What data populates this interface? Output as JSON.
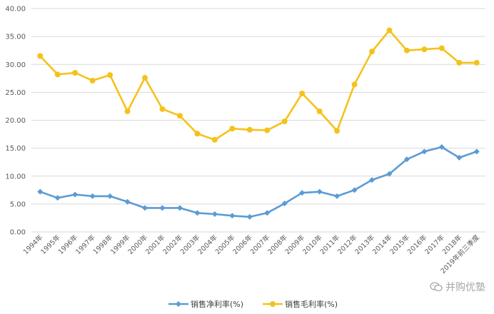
{
  "chart_data": {
    "type": "line",
    "title": "",
    "xlabel": "",
    "ylabel": "",
    "ylim": [
      0,
      40
    ],
    "yticks": [
      "0.00",
      "5.00",
      "10.00",
      "15.00",
      "20.00",
      "25.00",
      "30.00",
      "35.00",
      "40.00"
    ],
    "grid": true,
    "legend_position": "bottom",
    "categories": [
      "1994年",
      "1995年",
      "1996年",
      "1997年",
      "1998年",
      "1999年",
      "2000年",
      "2001年",
      "2002年",
      "2003年",
      "2004年",
      "2005年",
      "2006年",
      "2007年",
      "2008年",
      "2009年",
      "2010年",
      "2011年",
      "2012年",
      "2013年",
      "2014年",
      "2015年",
      "2016年",
      "2017年",
      "2018年",
      "2019年前三季度"
    ],
    "series": [
      {
        "name": "销售净利率(%)",
        "color": "#5b9bd5",
        "marker": "diamond",
        "values": [
          7.2,
          6.1,
          6.7,
          6.4,
          6.4,
          5.4,
          4.3,
          4.3,
          4.3,
          3.4,
          3.2,
          2.9,
          2.7,
          3.4,
          5.1,
          7.0,
          7.2,
          6.4,
          7.5,
          9.3,
          10.4,
          13.0,
          14.4,
          15.2,
          13.3,
          14.4
        ]
      },
      {
        "name": "销售毛利率(%)",
        "color": "#f5c21b",
        "marker": "circle",
        "values": [
          31.5,
          28.2,
          28.5,
          27.1,
          28.1,
          21.6,
          27.6,
          22.0,
          20.8,
          17.6,
          16.5,
          18.5,
          18.3,
          18.2,
          19.8,
          24.8,
          21.6,
          18.1,
          26.4,
          32.3,
          36.1,
          32.5,
          32.7,
          32.9,
          30.3,
          30.3
        ]
      }
    ]
  },
  "watermark": {
    "text": "并购优塾",
    "icon": "wechat-icon"
  }
}
